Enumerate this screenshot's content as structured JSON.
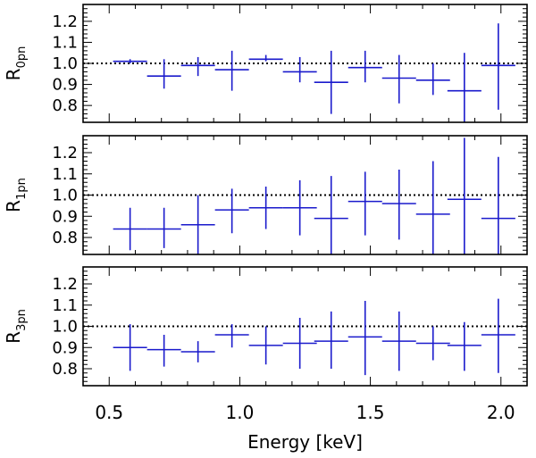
{
  "chart_data": [
    {
      "type": "errorbar",
      "ylabel_main": "R",
      "ylabel_sub": "0pn",
      "xlim": [
        0.4,
        2.1
      ],
      "ylim": [
        0.72,
        1.28
      ],
      "yticks": [
        "0.8",
        "0.9",
        "1.0",
        "1.1",
        "1.2"
      ],
      "reference_line": 1.0,
      "points": [
        {
          "x": 0.58,
          "xerr": 0.065,
          "y": 1.01,
          "ylo": 1.0,
          "yhi": 1.02
        },
        {
          "x": 0.71,
          "xerr": 0.065,
          "y": 0.94,
          "ylo": 0.88,
          "yhi": 1.02
        },
        {
          "x": 0.84,
          "xerr": 0.065,
          "y": 0.99,
          "ylo": 0.94,
          "yhi": 1.03
        },
        {
          "x": 0.97,
          "xerr": 0.065,
          "y": 0.97,
          "ylo": 0.87,
          "yhi": 1.06
        },
        {
          "x": 1.1,
          "xerr": 0.065,
          "y": 1.02,
          "ylo": 1.01,
          "yhi": 1.04
        },
        {
          "x": 1.23,
          "xerr": 0.065,
          "y": 0.96,
          "ylo": 0.91,
          "yhi": 1.03
        },
        {
          "x": 1.35,
          "xerr": 0.065,
          "y": 0.91,
          "ylo": 0.76,
          "yhi": 1.06
        },
        {
          "x": 1.48,
          "xerr": 0.065,
          "y": 0.98,
          "ylo": 0.91,
          "yhi": 1.06
        },
        {
          "x": 1.61,
          "xerr": 0.065,
          "y": 0.93,
          "ylo": 0.81,
          "yhi": 1.04
        },
        {
          "x": 1.74,
          "xerr": 0.065,
          "y": 0.92,
          "ylo": 0.85,
          "yhi": 1.0
        },
        {
          "x": 1.86,
          "xerr": 0.065,
          "y": 0.87,
          "ylo": 0.72,
          "yhi": 1.05
        },
        {
          "x": 1.99,
          "xerr": 0.065,
          "y": 0.99,
          "ylo": 0.78,
          "yhi": 1.19
        }
      ]
    },
    {
      "type": "errorbar",
      "ylabel_main": "R",
      "ylabel_sub": "1pn",
      "xlim": [
        0.4,
        2.1
      ],
      "ylim": [
        0.72,
        1.28
      ],
      "yticks": [
        "0.8",
        "0.9",
        "1.0",
        "1.1",
        "1.2"
      ],
      "reference_line": 1.0,
      "points": [
        {
          "x": 0.58,
          "xerr": 0.065,
          "y": 0.84,
          "ylo": 0.74,
          "yhi": 0.94
        },
        {
          "x": 0.71,
          "xerr": 0.065,
          "y": 0.84,
          "ylo": 0.75,
          "yhi": 0.94
        },
        {
          "x": 0.84,
          "xerr": 0.065,
          "y": 0.86,
          "ylo": 0.72,
          "yhi": 1.0
        },
        {
          "x": 0.97,
          "xerr": 0.065,
          "y": 0.93,
          "ylo": 0.82,
          "yhi": 1.03
        },
        {
          "x": 1.1,
          "xerr": 0.065,
          "y": 0.94,
          "ylo": 0.84,
          "yhi": 1.04
        },
        {
          "x": 1.23,
          "xerr": 0.065,
          "y": 0.94,
          "ylo": 0.81,
          "yhi": 1.07
        },
        {
          "x": 1.35,
          "xerr": 0.065,
          "y": 0.89,
          "ylo": 0.72,
          "yhi": 1.09
        },
        {
          "x": 1.48,
          "xerr": 0.065,
          "y": 0.97,
          "ylo": 0.81,
          "yhi": 1.11
        },
        {
          "x": 1.61,
          "xerr": 0.065,
          "y": 0.96,
          "ylo": 0.79,
          "yhi": 1.12
        },
        {
          "x": 1.74,
          "xerr": 0.065,
          "y": 0.91,
          "ylo": 0.72,
          "yhi": 1.16
        },
        {
          "x": 1.86,
          "xerr": 0.065,
          "y": 0.98,
          "ylo": 0.72,
          "yhi": 1.27
        },
        {
          "x": 1.99,
          "xerr": 0.065,
          "y": 0.89,
          "ylo": 0.72,
          "yhi": 1.18
        }
      ]
    },
    {
      "type": "errorbar",
      "ylabel_main": "R",
      "ylabel_sub": "3pn",
      "xlabel": "Energy [keV]",
      "xlim": [
        0.4,
        2.1
      ],
      "xticks": [
        "0.5",
        "1.0",
        "1.5",
        "2.0"
      ],
      "ylim": [
        0.72,
        1.28
      ],
      "yticks": [
        "0.8",
        "0.9",
        "1.0",
        "1.1",
        "1.2"
      ],
      "reference_line": 1.0,
      "points": [
        {
          "x": 0.58,
          "xerr": 0.065,
          "y": 0.9,
          "ylo": 0.79,
          "yhi": 1.01
        },
        {
          "x": 0.71,
          "xerr": 0.065,
          "y": 0.89,
          "ylo": 0.81,
          "yhi": 0.96
        },
        {
          "x": 0.84,
          "xerr": 0.065,
          "y": 0.88,
          "ylo": 0.83,
          "yhi": 0.93
        },
        {
          "x": 0.97,
          "xerr": 0.065,
          "y": 0.96,
          "ylo": 0.9,
          "yhi": 1.01
        },
        {
          "x": 1.1,
          "xerr": 0.065,
          "y": 0.91,
          "ylo": 0.82,
          "yhi": 1.0
        },
        {
          "x": 1.23,
          "xerr": 0.065,
          "y": 0.92,
          "ylo": 0.8,
          "yhi": 1.04
        },
        {
          "x": 1.35,
          "xerr": 0.065,
          "y": 0.93,
          "ylo": 0.8,
          "yhi": 1.07
        },
        {
          "x": 1.48,
          "xerr": 0.065,
          "y": 0.95,
          "ylo": 0.77,
          "yhi": 1.12
        },
        {
          "x": 1.61,
          "xerr": 0.065,
          "y": 0.93,
          "ylo": 0.79,
          "yhi": 1.07
        },
        {
          "x": 1.74,
          "xerr": 0.065,
          "y": 0.92,
          "ylo": 0.84,
          "yhi": 1.0
        },
        {
          "x": 1.86,
          "xerr": 0.065,
          "y": 0.91,
          "ylo": 0.79,
          "yhi": 1.02
        },
        {
          "x": 1.99,
          "xerr": 0.065,
          "y": 0.96,
          "ylo": 0.78,
          "yhi": 1.13
        }
      ]
    }
  ],
  "colors": {
    "series": "#1a1acc",
    "axes": "#000000"
  }
}
